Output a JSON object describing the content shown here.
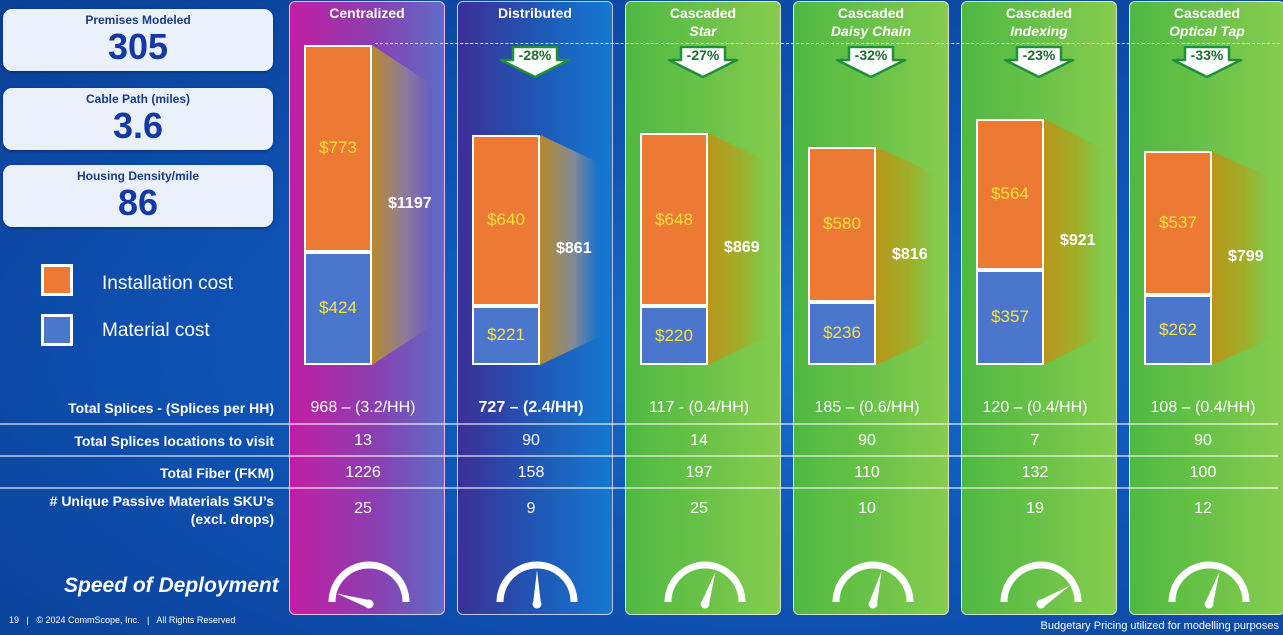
{
  "stats": [
    {
      "label": "Premises Modeled",
      "value": "305"
    },
    {
      "label": "Cable Path (miles)",
      "value": "3.6"
    },
    {
      "label": "Housing Density/mile",
      "value": "86"
    }
  ],
  "legend": [
    {
      "label": "Installation cost",
      "color": "#ec7a34"
    },
    {
      "label": "Material cost",
      "color": "#4a76cc"
    }
  ],
  "colors": {
    "installation": "#ec7a34",
    "material": "#4a76cc",
    "value_label": "#ffe23a"
  },
  "chart_data": {
    "type": "bar",
    "stacked": true,
    "categories": [
      "Centralized",
      "Distributed",
      "Cascaded Star",
      "Cascaded Daisy Chain",
      "Cascaded Indexing",
      "Cascaded Optical Tap"
    ],
    "series": [
      {
        "name": "Material cost",
        "values": [
          424,
          221,
          220,
          236,
          357,
          262
        ],
        "labels": [
          "$424",
          "$221",
          "$220",
          "$236",
          "$357",
          "$262"
        ]
      },
      {
        "name": "Installation cost",
        "values": [
          773,
          640,
          648,
          580,
          564,
          537
        ],
        "labels": [
          "$773",
          "$640",
          "$648",
          "$580",
          "$564",
          "$537"
        ]
      }
    ],
    "totals": [
      1197,
      861,
      869,
      816,
      921,
      799
    ],
    "total_labels": [
      "$1197",
      "$861",
      "$869",
      "$816",
      "$921",
      "$799"
    ],
    "legend": "left"
  },
  "columns": [
    {
      "title": "Centralized",
      "subtitle": "",
      "badge": "",
      "speed": 0.1
    },
    {
      "title": "Distributed",
      "subtitle": "",
      "badge": "-28%",
      "speed": 0.5
    },
    {
      "title": "Cascaded",
      "subtitle": "Star",
      "badge": "-27%",
      "speed": 0.6
    },
    {
      "title": "Cascaded",
      "subtitle": "Daisy Chain",
      "badge": "-32%",
      "speed": 0.58
    },
    {
      "title": "Cascaded",
      "subtitle": "Indexing",
      "badge": "-23%",
      "speed": 0.82
    },
    {
      "title": "Cascaded",
      "subtitle": "Optical Tap",
      "badge": "-33%",
      "speed": 0.6
    }
  ],
  "table": {
    "rows": [
      {
        "label": "Total Splices - (Splices per HH)",
        "values": [
          "968 – (3.2/HH)",
          "727 – (2.4/HH)",
          "117 - (0.4/HH)",
          "185 – (0.6/HH)",
          "120 – (0.4/HH)",
          "108 – (0.4/HH)"
        ]
      },
      {
        "label": "Total Splices locations to visit",
        "values": [
          "13",
          "90",
          "14",
          "90",
          "7",
          "90"
        ]
      },
      {
        "label": "Total Fiber (FKM)",
        "values": [
          "1226",
          "158",
          "197",
          "110",
          "132",
          "100"
        ]
      },
      {
        "label_line1": "# Unique Passive Materials SKU’s",
        "label_line2": "(excl. drops)",
        "values": [
          "25",
          "9",
          "25",
          "10",
          "19",
          "12"
        ]
      }
    ]
  },
  "speed_label": "Speed of Deployment",
  "footer": {
    "left": "19   |   © 2024 CommScope, Inc.   |   All Rights Reserved",
    "right": "Budgetary Pricing utilized for modelling purposes"
  }
}
